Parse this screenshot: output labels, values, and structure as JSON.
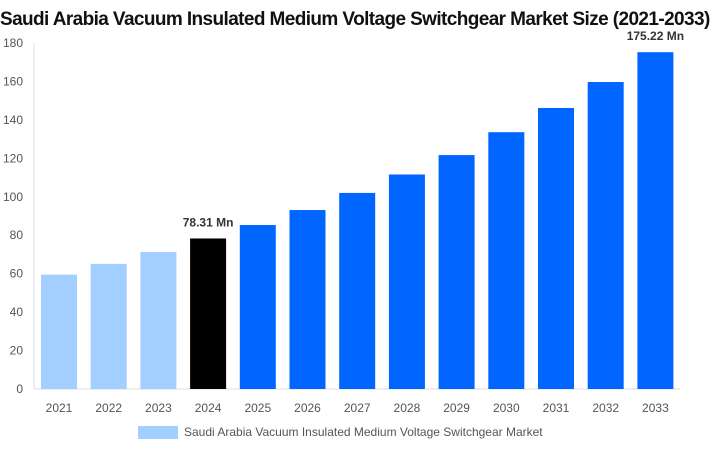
{
  "chart_data": {
    "type": "bar",
    "title": "Saudi Arabia Vacuum Insulated Medium Voltage Switchgear Market Size (2021-2033)",
    "categories": [
      "2021",
      "2022",
      "2023",
      "2024",
      "2025",
      "2026",
      "2027",
      "2028",
      "2029",
      "2030",
      "2031",
      "2032",
      "2033"
    ],
    "series": [
      {
        "name": "Saudi Arabia Vacuum Insulated Medium Voltage Switchgear Market",
        "values": [
          59.5,
          65.1,
          71.3,
          78.31,
          85.3,
          93.1,
          102.0,
          111.6,
          121.7,
          133.6,
          146.2,
          159.7,
          175.22
        ]
      }
    ],
    "data_labels": {
      "3": "78.31 Mn",
      "12": "175.22 Mn"
    },
    "colors": {
      "historical": "#a2cfff",
      "base_year": "#000000",
      "forecast": "#0066ff"
    },
    "ylim": [
      0,
      180
    ],
    "yticks": [
      0,
      20,
      40,
      60,
      80,
      100,
      120,
      140,
      160,
      180
    ],
    "grid": false,
    "legend": "bottom",
    "xlabel": "",
    "ylabel": ""
  }
}
